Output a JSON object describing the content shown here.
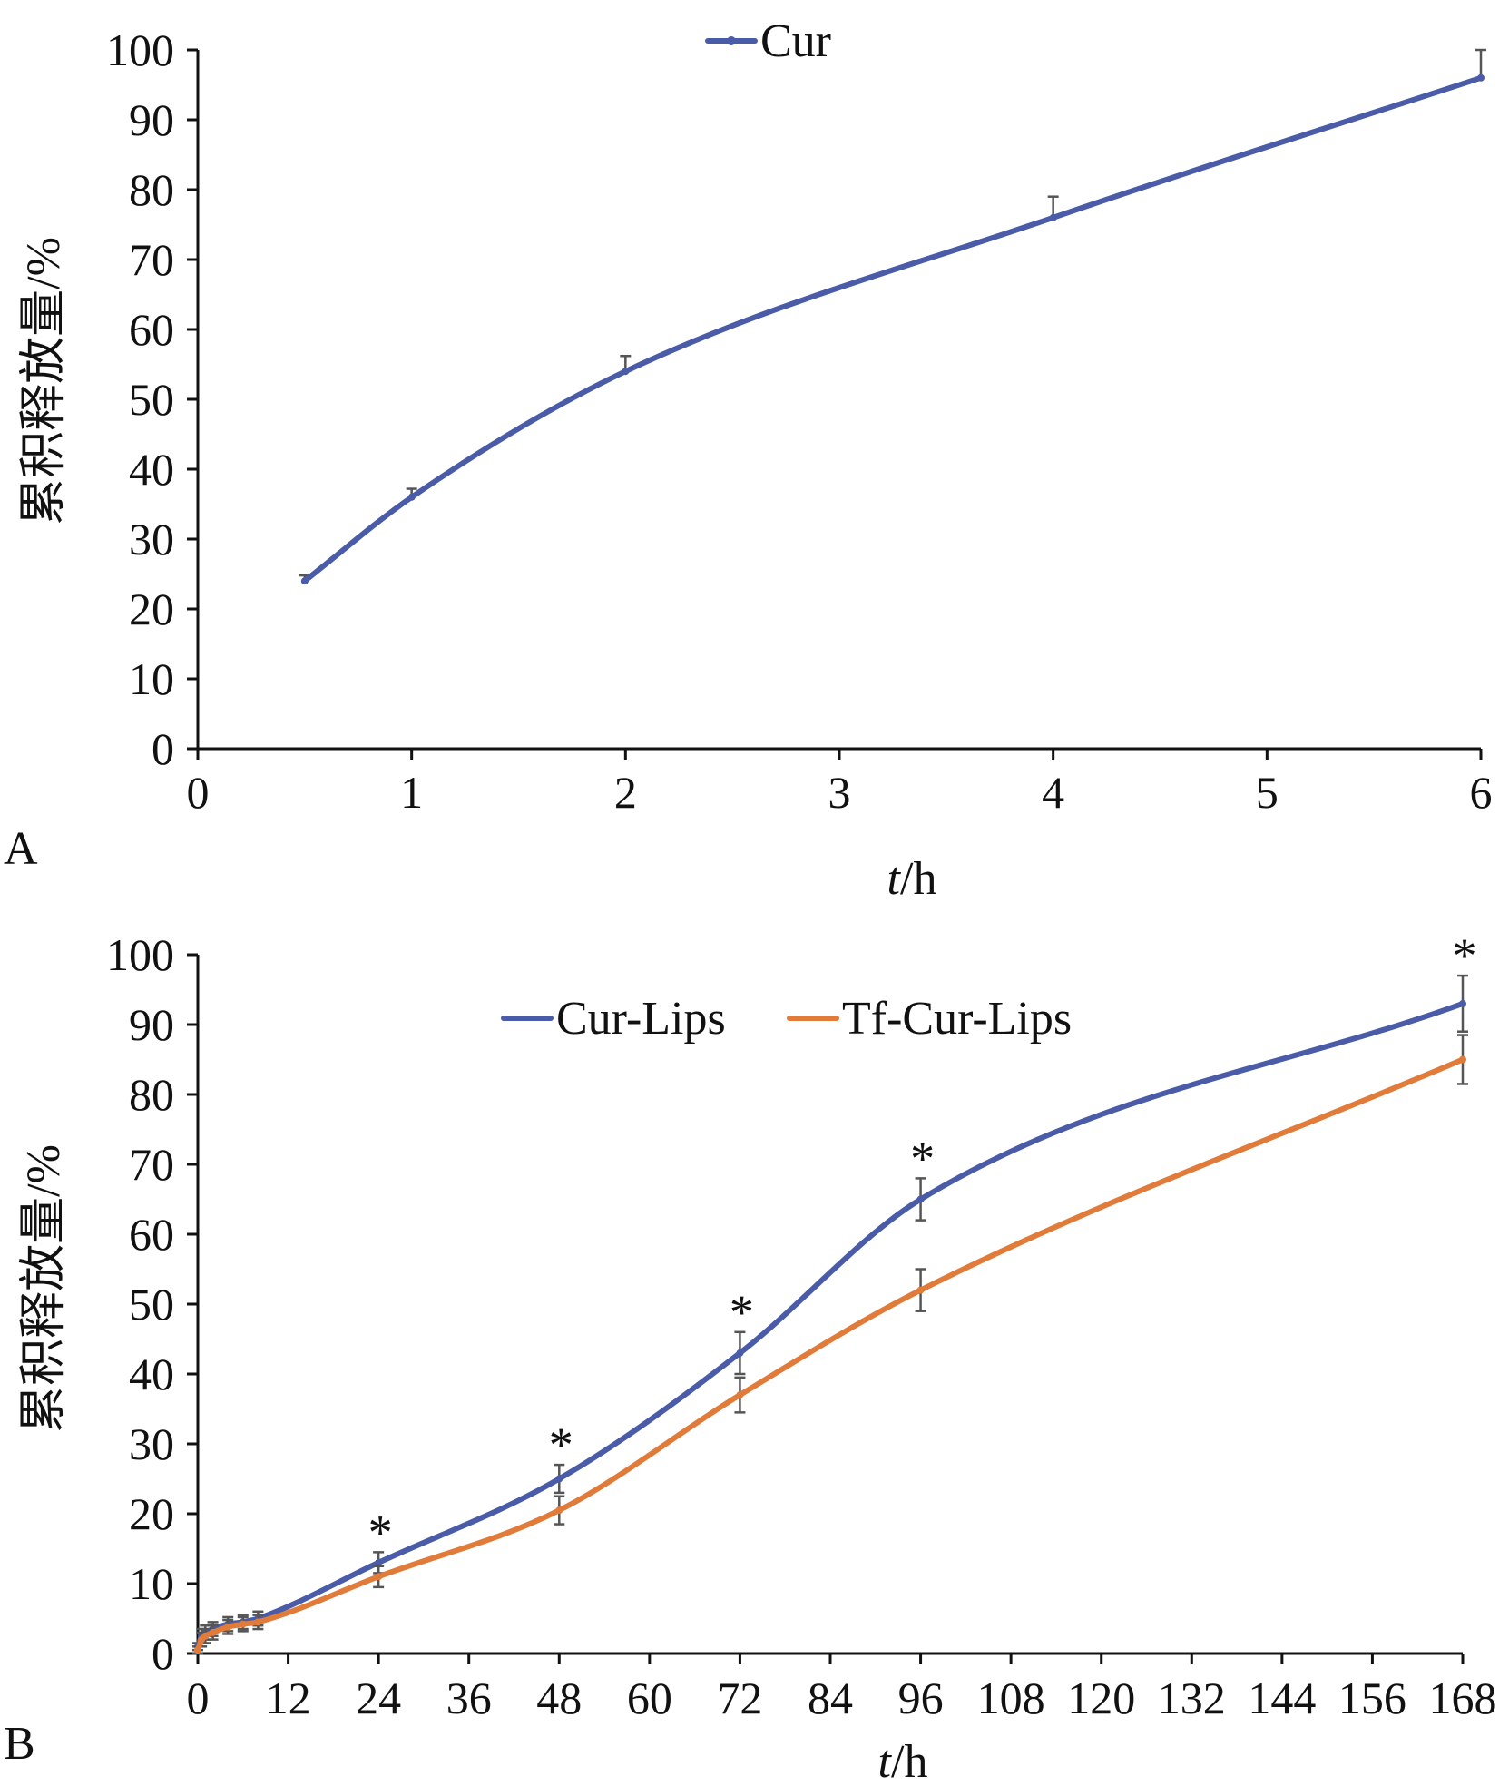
{
  "chart_data": [
    {
      "panel": "A",
      "type": "line",
      "title": "",
      "xlabel_italic": "t",
      "xlabel_rest": "/h",
      "ylabel": "累积释放量/%",
      "xlim": [
        0,
        6
      ],
      "ylim": [
        0,
        100
      ],
      "xticks": [
        0,
        1,
        2,
        3,
        4,
        5,
        6
      ],
      "yticks": [
        0,
        10,
        20,
        30,
        40,
        50,
        60,
        70,
        80,
        90,
        100
      ],
      "legend_position": "top-center",
      "series": [
        {
          "name": "Cur",
          "color": "#4A5BA8",
          "x": [
            0.5,
            1,
            2,
            4,
            6
          ],
          "y": [
            24,
            36,
            54,
            76,
            96
          ],
          "err": [
            0.8,
            1.2,
            2.2,
            3,
            4
          ]
        }
      ],
      "annotations": []
    },
    {
      "panel": "B",
      "type": "line",
      "title": "",
      "xlabel_italic": "t",
      "xlabel_rest": "/h",
      "ylabel": "累积释放量/%",
      "xlim": [
        0,
        168
      ],
      "ylim": [
        0,
        100
      ],
      "xticks": [
        0,
        12,
        24,
        36,
        48,
        60,
        72,
        84,
        96,
        108,
        120,
        132,
        144,
        156,
        168
      ],
      "yticks": [
        0,
        10,
        20,
        30,
        40,
        50,
        60,
        70,
        80,
        90,
        100
      ],
      "legend_position": "top-center",
      "series": [
        {
          "name": "Cur-Lips",
          "color": "#4A5BA8",
          "x": [
            0,
            0.5,
            1,
            2,
            4,
            6,
            8,
            24,
            48,
            72,
            96,
            168
          ],
          "y": [
            1,
            2.5,
            3,
            3.5,
            4.2,
            4.5,
            5,
            13,
            25,
            43,
            65,
            93
          ],
          "err": [
            0.5,
            1,
            1,
            1,
            1,
            1,
            1,
            1.5,
            2,
            3,
            3,
            4
          ]
        },
        {
          "name": "Tf-Cur-Lips",
          "color": "#E07B39",
          "x": [
            0,
            0.5,
            1,
            2,
            4,
            6,
            8,
            24,
            48,
            72,
            96,
            168
          ],
          "y": [
            0.5,
            2,
            2.5,
            3,
            3.8,
            4.2,
            4.5,
            11,
            20.5,
            37,
            52,
            85
          ],
          "err": [
            0.5,
            1,
            1,
            1,
            1,
            1,
            1,
            1.5,
            2,
            2.5,
            3,
            3.5
          ]
        }
      ],
      "annotations": [
        {
          "x": 24,
          "y": 13,
          "text": "*"
        },
        {
          "x": 48,
          "y": 25,
          "text": "*"
        },
        {
          "x": 72,
          "y": 43,
          "text": "*"
        },
        {
          "x": 96,
          "y": 65,
          "text": "*"
        },
        {
          "x": 168,
          "y": 93,
          "text": "*"
        }
      ]
    }
  ]
}
